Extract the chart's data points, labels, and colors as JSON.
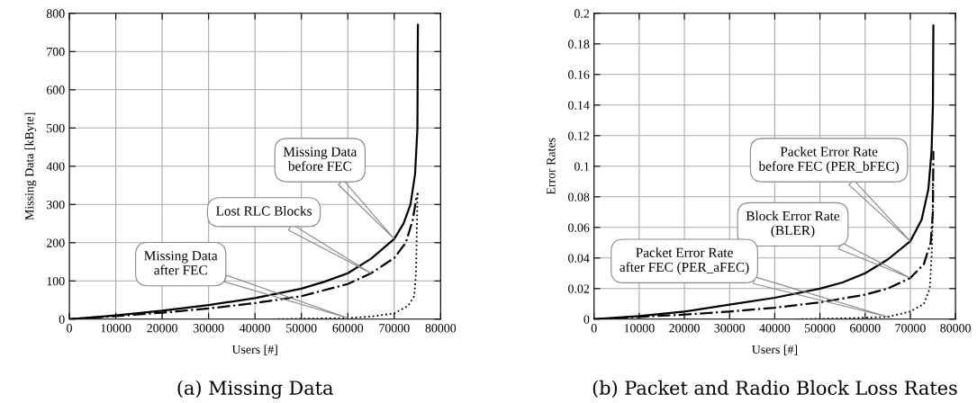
{
  "chart_data": [
    {
      "type": "line",
      "title": "(a) Missing Data",
      "xlabel": "Users [#]",
      "ylabel": "Missing Data [kByte]",
      "xlim": [
        0,
        80000
      ],
      "xticks": [
        0,
        10000,
        20000,
        30000,
        40000,
        50000,
        60000,
        70000,
        80000
      ],
      "ylim": [
        0,
        800
      ],
      "yticks": [
        0,
        100,
        200,
        300,
        400,
        500,
        600,
        700,
        800
      ],
      "grid": true,
      "marker": "none",
      "series": [
        {
          "color": "#000000",
          "line_style": "solid",
          "x": [
            0,
            10000,
            20000,
            30000,
            40000,
            50000,
            55000,
            60000,
            65000,
            70000,
            72000,
            73500,
            74500,
            75000,
            75100
          ],
          "values": [
            0,
            10,
            22,
            37,
            55,
            80,
            98,
            120,
            158,
            210,
            250,
            300,
            380,
            500,
            770
          ]
        },
        {
          "color": "#000000",
          "line_style": "dashdot",
          "x": [
            0,
            10000,
            20000,
            30000,
            40000,
            50000,
            60000,
            65000,
            70000,
            72500,
            74000,
            74800,
            75100
          ],
          "values": [
            0,
            8,
            17,
            28,
            42,
            60,
            92,
            120,
            160,
            200,
            260,
            320,
            330
          ]
        },
        {
          "color": "#000000",
          "line_style": "dotted",
          "x": [
            44000,
            60000,
            65000,
            70000,
            73000,
            74300,
            74700,
            74900,
            75000
          ],
          "values": [
            0,
            3,
            7,
            15,
            35,
            60,
            120,
            250,
            320
          ]
        }
      ],
      "annotations": [
        "Missing Data\nbefore FEC",
        "Lost RLC Blocks",
        "Missing Data\nafter FEC"
      ]
    },
    {
      "type": "line",
      "title": "(b) Packet and Radio Block Loss Rates",
      "xlabel": "Users [#]",
      "ylabel": "Error Rates",
      "xlim": [
        0,
        80000
      ],
      "xticks": [
        0,
        10000,
        20000,
        30000,
        40000,
        50000,
        60000,
        70000,
        80000
      ],
      "ylim": [
        0,
        0.2
      ],
      "yticks": [
        0,
        0.02,
        0.04,
        0.06,
        0.08,
        0.1,
        0.12,
        0.14,
        0.16,
        0.18,
        0.2
      ],
      "grid": true,
      "marker": "none",
      "series": [
        {
          "color": "#000000",
          "line_style": "solid",
          "x": [
            0,
            10000,
            20000,
            30000,
            40000,
            50000,
            55000,
            60000,
            65000,
            70000,
            72500,
            74000,
            74700,
            75000,
            75100
          ],
          "values": [
            0,
            0.002,
            0.005,
            0.0095,
            0.014,
            0.02,
            0.024,
            0.03,
            0.039,
            0.051,
            0.065,
            0.085,
            0.11,
            0.14,
            0.192
          ]
        },
        {
          "color": "#000000",
          "line_style": "dashdot",
          "x": [
            0,
            10000,
            20000,
            30000,
            40000,
            50000,
            60000,
            65000,
            70000,
            73000,
            74500,
            75000,
            75100
          ],
          "values": [
            0,
            0.0015,
            0.003,
            0.005,
            0.0075,
            0.011,
            0.016,
            0.02,
            0.027,
            0.036,
            0.05,
            0.07,
            0.11
          ]
        },
        {
          "color": "#000000",
          "line_style": "dotted",
          "x": [
            45000,
            55000,
            65000,
            70000,
            73000,
            74300,
            74700,
            74900,
            75000
          ],
          "values": [
            0,
            0.0005,
            0.0015,
            0.005,
            0.01,
            0.02,
            0.04,
            0.06,
            0.09
          ]
        }
      ],
      "annotations": [
        "Packet Error Rate\nbefore FEC (PER_bFEC)",
        "Block Error Rate\n(BLER)",
        "Packet Error Rate\nafter FEC (PER_aFEC)"
      ]
    }
  ]
}
